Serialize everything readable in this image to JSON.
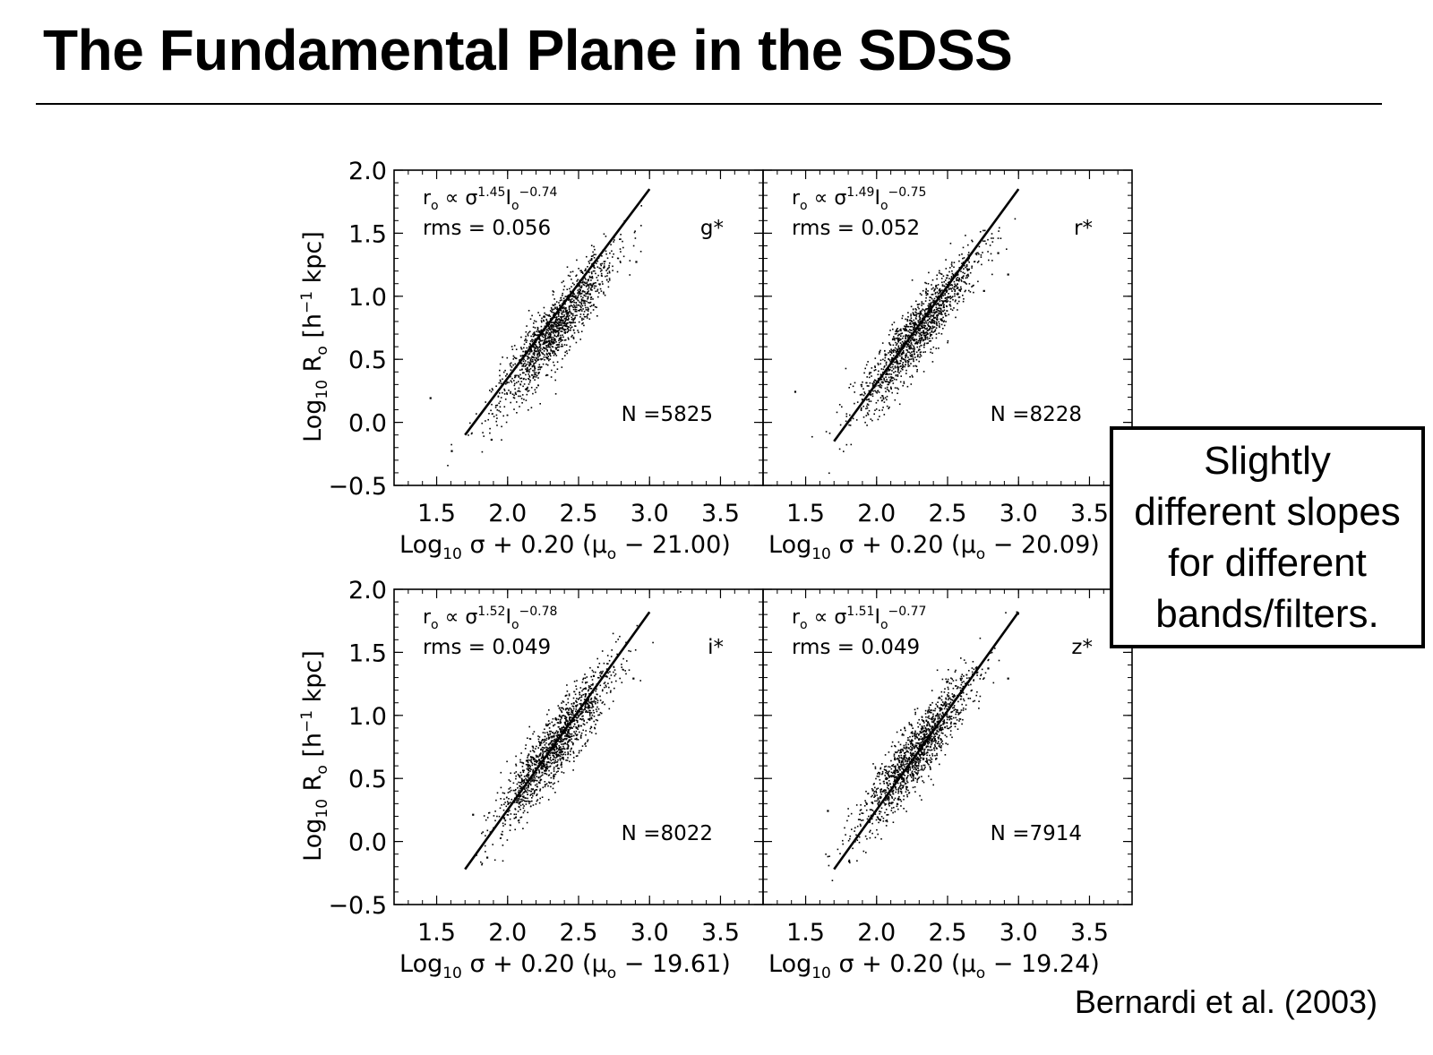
{
  "slide": {
    "title": "The Fundamental Plane in the SDSS",
    "callout": "Slightly\ndifferent slopes\nfor different\nbands/filters.",
    "citation": "Bernardi et al. (2003)"
  },
  "colors": {
    "background": "#ffffff",
    "ink": "#000000"
  },
  "chart_data": [
    {
      "type": "scatter",
      "band": "g*",
      "relation_base": "r",
      "relation_sub": "o",
      "relation_mid": " ∝ σ",
      "sigma_exp": "1.45",
      "relation_i": "I",
      "i_exp": "−0.74",
      "rms_text": "rms = 0.056",
      "n_text": "N =5825",
      "xlabel_zp": "21.00",
      "ylabel": "Log10 Ro [h−1 kpc]",
      "xlim": [
        1.2,
        3.8
      ],
      "ylim": [
        -0.5,
        2.0
      ],
      "xticks": [
        "1.5",
        "2.0",
        "2.5",
        "3.0",
        "3.5"
      ],
      "yticks": [
        "−0.5",
        "0.0",
        "0.5",
        "1.0",
        "1.5",
        "2.0"
      ],
      "fit_line": {
        "x": [
          1.7,
          3.0
        ],
        "y": [
          -0.1,
          1.85
        ]
      },
      "cloud": {
        "x_center": 2.33,
        "y_center": 0.74,
        "slope": 1.45,
        "scatter": 0.056,
        "outliers": [
          [
            1.45,
            0.2
          ],
          [
            1.6,
            -0.22
          ],
          [
            2.9,
            1.28
          ],
          [
            1.88,
            -0.13
          ]
        ]
      }
    },
    {
      "type": "scatter",
      "band": "r*",
      "relation_base": "r",
      "relation_sub": "o",
      "relation_mid": " ∝ σ",
      "sigma_exp": "1.49",
      "relation_i": "I",
      "i_exp": "−0.75",
      "rms_text": "rms = 0.052",
      "n_text": "N =8228",
      "xlabel_zp": "20.09",
      "ylabel": "Log10 Ro [h−1 kpc]",
      "xlim": [
        1.2,
        3.8
      ],
      "ylim": [
        -0.5,
        2.0
      ],
      "xticks": [
        "1.5",
        "2.0",
        "2.5",
        "3.0",
        "3.5"
      ],
      "yticks": [
        "−0.5",
        "0.0",
        "0.5",
        "1.0",
        "1.5",
        "2.0"
      ],
      "fit_line": {
        "x": [
          1.7,
          3.0
        ],
        "y": [
          -0.15,
          1.85
        ]
      },
      "cloud": {
        "x_center": 2.28,
        "y_center": 0.72,
        "slope": 1.49,
        "scatter": 0.052,
        "outliers": [
          [
            1.42,
            0.25
          ],
          [
            2.75,
            1.05
          ],
          [
            2.85,
            1.35
          ],
          [
            2.92,
            1.18
          ]
        ]
      }
    },
    {
      "type": "scatter",
      "band": "i*",
      "relation_base": "r",
      "relation_sub": "o",
      "relation_mid": " ∝ σ",
      "sigma_exp": "1.52",
      "relation_i": "I",
      "i_exp": "−0.78",
      "rms_text": "rms = 0.049",
      "n_text": "N =8022",
      "xlabel_zp": "19.61",
      "ylabel": "Log10 Ro [h−1 kpc]",
      "xlim": [
        1.2,
        3.8
      ],
      "ylim": [
        -0.5,
        2.0
      ],
      "xticks": [
        "1.5",
        "2.0",
        "2.5",
        "3.0",
        "3.5"
      ],
      "yticks": [
        "−0.5",
        "0.0",
        "0.5",
        "1.0",
        "1.5",
        "2.0"
      ],
      "fit_line": {
        "x": [
          1.7,
          3.0
        ],
        "y": [
          -0.22,
          1.82
        ]
      },
      "cloud": {
        "x_center": 2.33,
        "y_center": 0.76,
        "slope": 1.52,
        "scatter": 0.049,
        "outliers": [
          [
            1.75,
            0.22
          ],
          [
            2.88,
            1.3
          ],
          [
            1.85,
            -0.12
          ],
          [
            2.6,
            1.32
          ]
        ]
      }
    },
    {
      "type": "scatter",
      "band": "z*",
      "relation_base": "r",
      "relation_sub": "o",
      "relation_mid": " ∝ σ",
      "sigma_exp": "1.51",
      "relation_i": "I",
      "i_exp": "−0.77",
      "rms_text": "rms = 0.049",
      "n_text": "N =7914",
      "xlabel_zp": "19.24",
      "ylabel": "Log10 Ro [h−1 kpc]",
      "xlim": [
        1.2,
        3.8
      ],
      "ylim": [
        -0.5,
        2.0
      ],
      "xticks": [
        "1.5",
        "2.0",
        "2.5",
        "3.0",
        "3.5"
      ],
      "yticks": [
        "−0.5",
        "0.0",
        "0.5",
        "1.0",
        "1.5",
        "2.0"
      ],
      "fit_line": {
        "x": [
          1.7,
          3.0
        ],
        "y": [
          -0.22,
          1.82
        ]
      },
      "cloud": {
        "x_center": 2.28,
        "y_center": 0.72,
        "slope": 1.51,
        "scatter": 0.049,
        "outliers": [
          [
            1.65,
            0.25
          ],
          [
            2.92,
            1.3
          ],
          [
            1.8,
            -0.15
          ],
          [
            2.78,
            1.38
          ]
        ]
      }
    }
  ]
}
